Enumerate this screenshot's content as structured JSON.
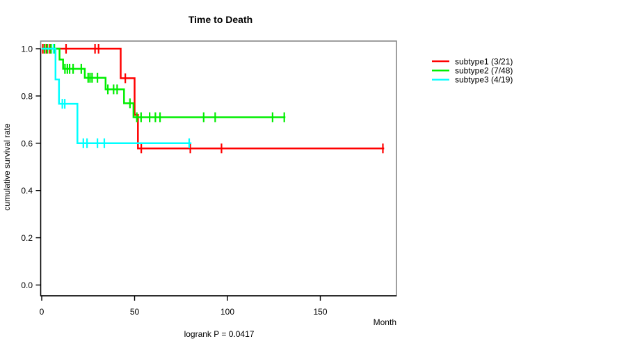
{
  "chart_data": {
    "type": "line",
    "variant": "kaplan-meier-step",
    "title": "Time to Death",
    "xlabel": "Month",
    "ylabel": "cumulative survival rate",
    "annotation": "logrank P = 0.0417",
    "x_ticks": [
      0,
      50,
      100,
      150
    ],
    "y_ticks": [
      0.0,
      0.2,
      0.4,
      0.6,
      0.8,
      1.0
    ],
    "xlim": [
      0,
      191
    ],
    "ylim": [
      0,
      1
    ],
    "grid": false,
    "legend_position": "right-outside",
    "series": [
      {
        "name": "subtype1 (3/21)",
        "color": "#ff0000",
        "events": "3/21",
        "steps": [
          [
            0,
            1.0
          ],
          [
            42.5,
            1.0
          ],
          [
            42.5,
            0.875
          ],
          [
            50,
            0.875
          ],
          [
            50,
            0.72
          ],
          [
            51.8,
            0.72
          ],
          [
            51.8,
            0.578
          ],
          [
            184.4,
            0.578
          ]
        ],
        "censors": [
          [
            0.6,
            1.0
          ],
          [
            2.5,
            1.0
          ],
          [
            4.4,
            1.0
          ],
          [
            13.1,
            1.0
          ],
          [
            28.7,
            1.0
          ],
          [
            30.6,
            1.0
          ],
          [
            45,
            0.875
          ],
          [
            53.6,
            0.578
          ],
          [
            80,
            0.578
          ],
          [
            96.8,
            0.578
          ],
          [
            183.7,
            0.578
          ]
        ]
      },
      {
        "name": "subtype2 (7/48)",
        "color": "#00ee00",
        "events": "7/48",
        "steps": [
          [
            0,
            1.0
          ],
          [
            9.6,
            1.0
          ],
          [
            9.6,
            0.954
          ],
          [
            11.5,
            0.954
          ],
          [
            11.5,
            0.915
          ],
          [
            23.2,
            0.915
          ],
          [
            23.2,
            0.877
          ],
          [
            34.4,
            0.877
          ],
          [
            34.4,
            0.828
          ],
          [
            44.3,
            0.828
          ],
          [
            44.3,
            0.769
          ],
          [
            49.4,
            0.769
          ],
          [
            49.4,
            0.71
          ],
          [
            131.2,
            0.71
          ]
        ],
        "censors": [
          [
            1.5,
            1.0
          ],
          [
            3.1,
            1.0
          ],
          [
            5.0,
            1.0
          ],
          [
            6.8,
            1.0
          ],
          [
            12.5,
            0.915
          ],
          [
            13.8,
            0.915
          ],
          [
            15.0,
            0.915
          ],
          [
            16.9,
            0.915
          ],
          [
            21.3,
            0.915
          ],
          [
            25.0,
            0.877
          ],
          [
            26.0,
            0.877
          ],
          [
            27.1,
            0.877
          ],
          [
            30.0,
            0.877
          ],
          [
            35.6,
            0.828
          ],
          [
            38.7,
            0.828
          ],
          [
            40.6,
            0.828
          ],
          [
            47.5,
            0.769
          ],
          [
            51.2,
            0.71
          ],
          [
            53.5,
            0.71
          ],
          [
            58.1,
            0.71
          ],
          [
            61.2,
            0.71
          ],
          [
            63.7,
            0.71
          ],
          [
            87.2,
            0.71
          ],
          [
            93.4,
            0.71
          ],
          [
            124.3,
            0.71
          ],
          [
            130.6,
            0.71
          ]
        ]
      },
      {
        "name": "subtype3 (4/19)",
        "color": "#00ffff",
        "events": "4/19",
        "steps": [
          [
            0,
            1.0
          ],
          [
            7.4,
            1.0
          ],
          [
            7.4,
            0.87
          ],
          [
            9.3,
            0.87
          ],
          [
            9.3,
            0.767
          ],
          [
            19.2,
            0.767
          ],
          [
            19.2,
            0.6
          ],
          [
            80.6,
            0.6
          ]
        ],
        "censors": [
          [
            6.3,
            1.0
          ],
          [
            11.1,
            0.767
          ],
          [
            12.4,
            0.767
          ],
          [
            22.4,
            0.6
          ],
          [
            24.4,
            0.6
          ],
          [
            30.0,
            0.6
          ],
          [
            33.7,
            0.6
          ],
          [
            79.4,
            0.6
          ]
        ]
      }
    ]
  },
  "legend": {
    "items": [
      {
        "label": "subtype1 (3/21)",
        "color": "#ff0000"
      },
      {
        "label": "subtype2 (7/48)",
        "color": "#00ee00"
      },
      {
        "label": "subtype3 (4/19)",
        "color": "#00ffff"
      }
    ]
  }
}
